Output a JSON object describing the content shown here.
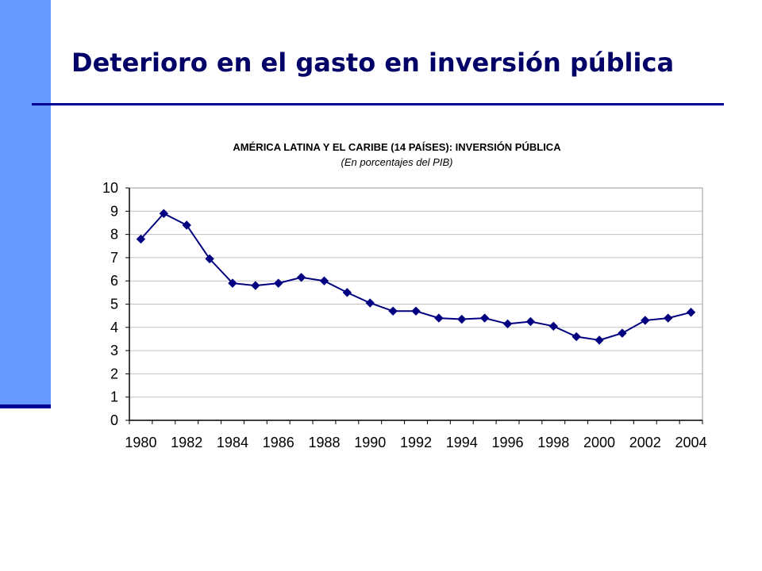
{
  "slide": {
    "title": "Deterioro en el gasto en inversión pública",
    "accent_color": "#6699ff",
    "title_color": "#000066",
    "rule_color": "#000099"
  },
  "chart_data": {
    "type": "line",
    "title": "AMÉRICA LATINA Y EL CARIBE (14 PAÍSES): INVERSIÓN PÚBLICA",
    "subtitle": "(En porcentajes del PIB)",
    "xlabel": "",
    "ylabel": "",
    "ylim": [
      0,
      10
    ],
    "yticks": [
      "0",
      "1",
      "2",
      "3",
      "4",
      "5",
      "6",
      "7",
      "8",
      "9",
      "10"
    ],
    "xticks": [
      "1980",
      "1982",
      "1984",
      "1986",
      "1988",
      "1990",
      "1992",
      "1994",
      "1996",
      "1998",
      "2000",
      "2002",
      "2004"
    ],
    "grid": "horizontal",
    "legend": "none",
    "series_color": "#000080",
    "x": [
      1980,
      1981,
      1982,
      1983,
      1984,
      1985,
      1986,
      1987,
      1988,
      1989,
      1990,
      1991,
      1992,
      1993,
      1994,
      1995,
      1996,
      1997,
      1998,
      1999,
      2000,
      2001,
      2002,
      2003,
      2004
    ],
    "values": [
      7.8,
      8.9,
      8.4,
      6.95,
      5.9,
      5.8,
      5.9,
      6.15,
      6.0,
      5.5,
      5.05,
      4.7,
      4.7,
      4.4,
      4.35,
      4.4,
      4.15,
      4.25,
      4.05,
      3.6,
      3.45,
      3.75,
      4.3,
      4.4,
      4.65
    ]
  }
}
